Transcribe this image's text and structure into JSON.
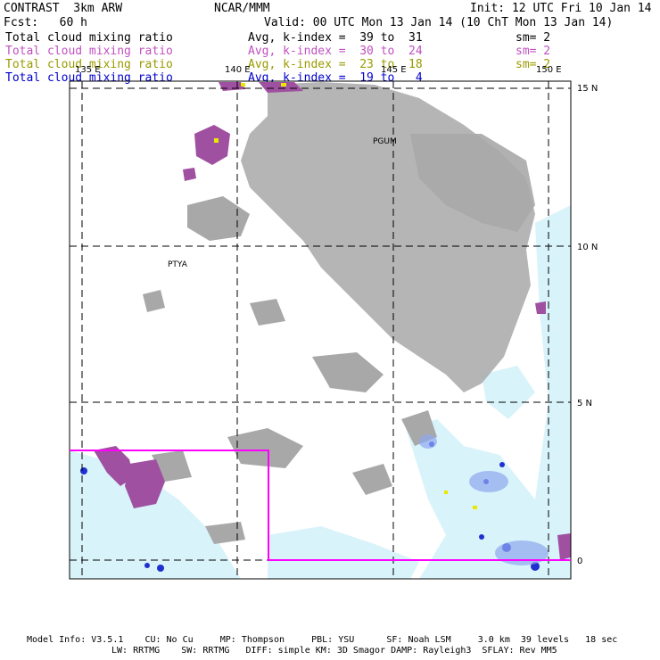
{
  "header": {
    "model": "CONTRAST  3km ARW",
    "center": "NCAR/MMM",
    "init": "Init: 12 UTC Fri 10 Jan 14",
    "fcst": "Fcst:   60 h",
    "valid": "Valid: 00 UTC Mon 13 Jan 14 (10 ChT Mon 13 Jan 14)"
  },
  "fields": [
    {
      "name": "Total cloud mixing ratio",
      "avg": "Avg, k-index =  39 to  31",
      "sm": "sm= 2",
      "color": "#000000"
    },
    {
      "name": "Total cloud mixing ratio",
      "avg": "Avg, k-index =  30 to  24",
      "sm": "sm= 2",
      "color": "#c050c0"
    },
    {
      "name": "Total cloud mixing ratio",
      "avg": "Avg, k-index =  23 to  18",
      "sm": "sm= 2",
      "color": "#9a9a00"
    },
    {
      "name": "Total cloud mixing ratio",
      "avg": "Avg, k-index =  19 to   4",
      "sm": "",
      "color": "#0000d0"
    }
  ],
  "map": {
    "lon_labels": [
      "135 E",
      "140 E",
      "145 E",
      "150 E"
    ],
    "lat_labels": [
      "15 N",
      "10 N",
      "5 N",
      "0"
    ],
    "stations": [
      "PGUM",
      "PTYA"
    ],
    "colors": {
      "gray": "#a0a0a0",
      "magenta": "#a050a0",
      "cyan": "#d8f3fa",
      "blue": "#2030d0",
      "box": "#ff00ff"
    }
  },
  "footer": {
    "line1": "Model Info: V3.5.1    CU: No Cu     MP: Thompson     PBL: YSU      SF: Noah LSM     3.0 km  39 levels   18 sec",
    "line2": "LW: RRTMG    SW: RRTMG   DIFF: simple KM: 3D Smagor DAMP: Rayleigh3  SFLAY: Rev MM5"
  }
}
